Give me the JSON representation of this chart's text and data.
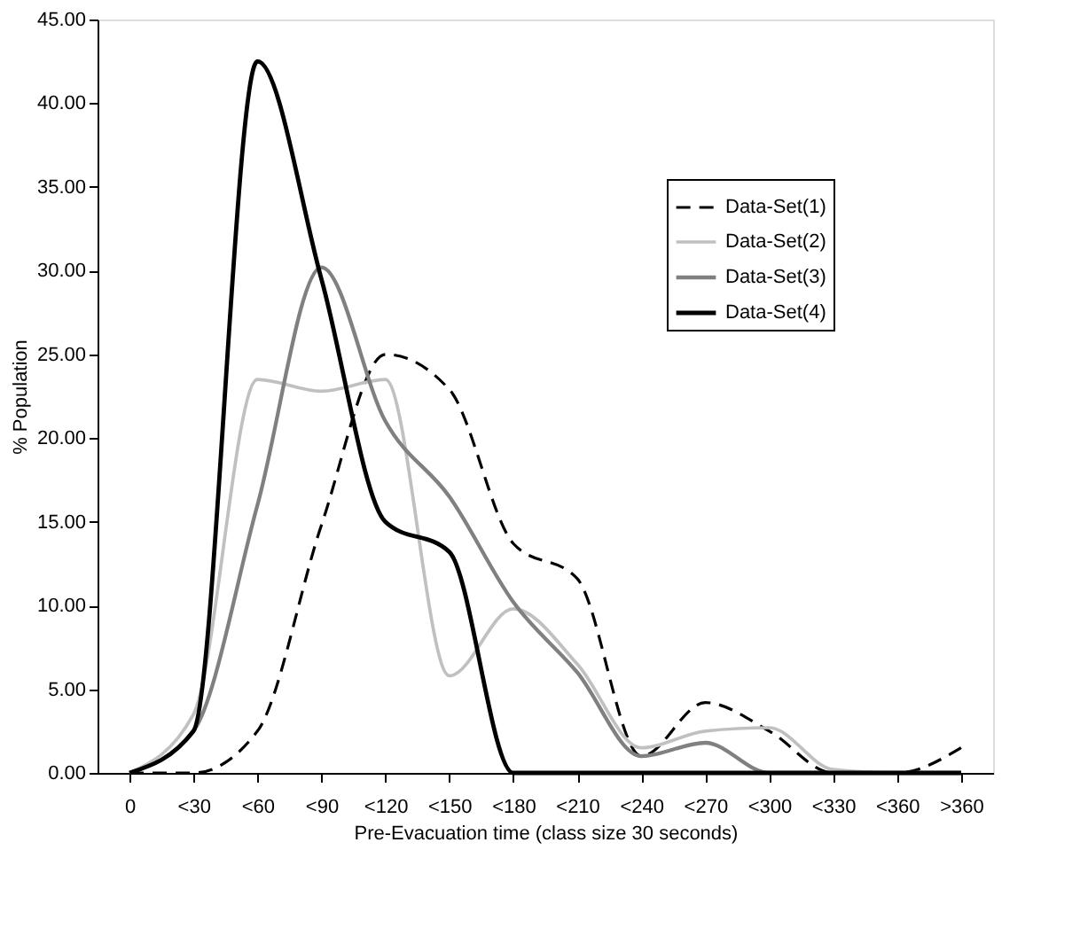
{
  "chart_data": {
    "type": "line",
    "xlabel": "Pre-Evacuation time (class size 30 seconds)",
    "ylabel": "% Population",
    "categories": [
      "0",
      "<30",
      "<60",
      "<90",
      "<120",
      "<150",
      "<180",
      "<210",
      "<240",
      "<270",
      "<300",
      "<330",
      "<360",
      ">360"
    ],
    "ylim": [
      0,
      45
    ],
    "yticks": [
      {
        "value": 0,
        "label": "0.00"
      },
      {
        "value": 5,
        "label": "5.00"
      },
      {
        "value": 10,
        "label": "10.00"
      },
      {
        "value": 15,
        "label": "15.00"
      },
      {
        "value": 20,
        "label": "20.00"
      },
      {
        "value": 25,
        "label": "25.00"
      },
      {
        "value": 30,
        "label": "30.00"
      },
      {
        "value": 35,
        "label": "35.00"
      },
      {
        "value": 40,
        "label": "40.00"
      },
      {
        "value": 45,
        "label": "45.00"
      }
    ],
    "series": [
      {
        "name": "Data-Set(1)",
        "color": "#000000",
        "line_style": "dashed",
        "values": [
          0,
          0,
          2.5,
          14.8,
          25,
          22.9,
          13.7,
          11.6,
          1.0,
          4.2,
          2.5,
          0,
          0,
          1.5
        ]
      },
      {
        "name": "Data-Set(2)",
        "color": "#c0c0c0",
        "line_style": "solid",
        "values": [
          0,
          3.5,
          23.5,
          22.8,
          23.5,
          5.8,
          9.8,
          6.5,
          1.5,
          2.5,
          2.7,
          0.2,
          0,
          0
        ]
      },
      {
        "name": "Data-Set(3)",
        "color": "#808080",
        "line_style": "solid",
        "values": [
          0,
          2.5,
          16,
          30.2,
          21,
          16.5,
          10.2,
          6,
          1.0,
          1.8,
          0,
          0,
          0,
          0
        ]
      },
      {
        "name": "Data-Set(4)",
        "color": "#000000",
        "line_style": "solid",
        "values": [
          0,
          2.5,
          42.5,
          29.5,
          15,
          13.2,
          0,
          0,
          0,
          0,
          0,
          0,
          0,
          0
        ]
      }
    ],
    "grid": false,
    "legend": "top right",
    "marker": "none"
  }
}
